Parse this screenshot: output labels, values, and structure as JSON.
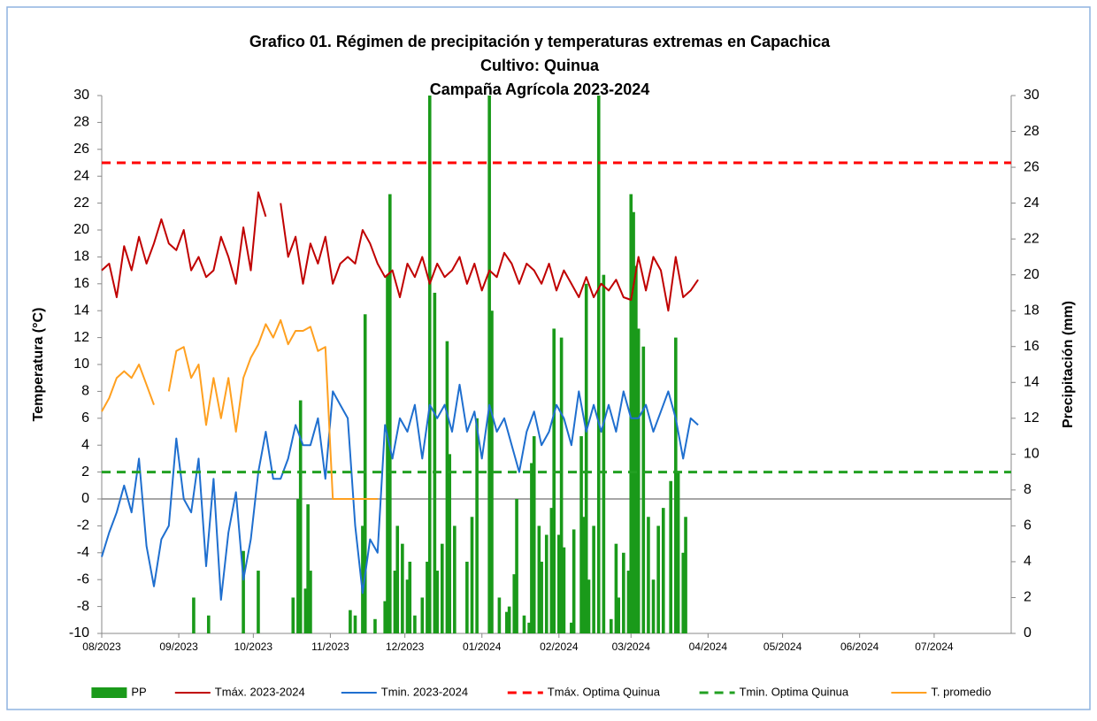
{
  "chart_data": {
    "type": "bar_line",
    "title": [
      "Grafico 01. Régimen de precipitación y temperaturas extremas en Capachica",
      "Cultivo: Quinua",
      "Campaña Agrícola 2023-2024"
    ],
    "ylabel": "Temperatura (°C)",
    "y2label": "Precipitación (mm)",
    "xlim": [
      0,
      366
    ],
    "xticks": [
      {
        "value": 0,
        "label": "08/2023"
      },
      {
        "value": 31,
        "label": "09/2023"
      },
      {
        "value": 61,
        "label": "10/2023"
      },
      {
        "value": 92,
        "label": "11/2023"
      },
      {
        "value": 122,
        "label": "12/2023"
      },
      {
        "value": 153,
        "label": "01/2024"
      },
      {
        "value": 184,
        "label": "02/2024"
      },
      {
        "value": 213,
        "label": "03/2024"
      },
      {
        "value": 244,
        "label": "04/2024"
      },
      {
        "value": 274,
        "label": "05/2024"
      },
      {
        "value": 305,
        "label": "06/2024"
      },
      {
        "value": 335,
        "label": "07/2024"
      }
    ],
    "ylim": [
      -10,
      30
    ],
    "yticks": [
      -10,
      -8,
      -6,
      -4,
      -2,
      0,
      2,
      4,
      6,
      8,
      10,
      12,
      14,
      16,
      18,
      20,
      22,
      24,
      26,
      28,
      30
    ],
    "y2lim": [
      0,
      30
    ],
    "y2ticks": [
      0,
      2,
      4,
      6,
      8,
      10,
      12,
      14,
      16,
      18,
      20,
      22,
      24,
      26,
      28,
      30
    ],
    "legend": "bottom",
    "series": [
      {
        "name": "PP",
        "type": "bar",
        "axis": "y2",
        "color": "#1a9a1a",
        "x": [
          37,
          43,
          57,
          63,
          77,
          79,
          80,
          82,
          83,
          84,
          100,
          102,
          105,
          106,
          110,
          114,
          115,
          116,
          118,
          119,
          121,
          123,
          124,
          126,
          129,
          131,
          132,
          134,
          135,
          137,
          139,
          140,
          142,
          147,
          149,
          151,
          156,
          157,
          160,
          163,
          164,
          166,
          167,
          170,
          172,
          173,
          174,
          176,
          177,
          179,
          181,
          182,
          184,
          185,
          186,
          189,
          190,
          193,
          194,
          195,
          196,
          198,
          200,
          202,
          205,
          207,
          208,
          210,
          212,
          213,
          214,
          215,
          216,
          218,
          220,
          222,
          224,
          226,
          229,
          231,
          232,
          234,
          235
        ],
        "values": [
          2,
          1,
          4.6,
          3.5,
          2,
          7.5,
          13,
          2.5,
          7.2,
          3.5,
          1.3,
          1,
          6,
          17.8,
          0.8,
          1.8,
          20,
          24.5,
          3.5,
          6,
          5,
          3,
          4,
          1,
          2,
          4,
          30,
          19,
          3.5,
          5,
          16.3,
          10,
          6,
          4,
          6.5,
          12,
          30,
          18,
          2,
          1.2,
          1.5,
          3.3,
          7.5,
          1,
          0.6,
          9.5,
          11,
          6,
          4,
          5.5,
          7,
          17,
          5.5,
          16.5,
          4.8,
          0.6,
          5.8,
          11,
          6.5,
          19.5,
          3,
          6,
          30,
          20,
          0.8,
          5,
          2,
          4.5,
          3.5,
          24.5,
          23.5,
          20.5,
          17,
          16,
          6.5,
          3,
          6,
          7,
          8.5,
          16.5,
          9,
          4.5,
          6.5
        ]
      },
      {
        "name": "Tmáx. 2023-2024",
        "type": "line",
        "color": "#c00000",
        "x": [
          0,
          3,
          6,
          9,
          12,
          15,
          18,
          21,
          24,
          27,
          30,
          33,
          36,
          39,
          42,
          45,
          48,
          51,
          54,
          57,
          60,
          63,
          66,
          69,
          72,
          75,
          78,
          81,
          84,
          87,
          90,
          93,
          96,
          99,
          102,
          105,
          108,
          111,
          114,
          117,
          120,
          123,
          126,
          129,
          132,
          135,
          138,
          141,
          144,
          147,
          150,
          153,
          156,
          159,
          162,
          165,
          168,
          171,
          174,
          177,
          180,
          183,
          186,
          189,
          192,
          195,
          198,
          201,
          204,
          207,
          210,
          213,
          216,
          219,
          222,
          225,
          228,
          231,
          234,
          237,
          240
        ],
        "values": [
          17,
          17.5,
          15,
          18.8,
          17,
          19.5,
          17.5,
          19,
          20.8,
          19,
          18.5,
          20,
          17,
          18,
          16.5,
          17,
          19.5,
          18,
          16,
          20.2,
          17,
          22.8,
          21,
          null,
          22,
          18,
          19.5,
          16,
          19,
          17.5,
          19.5,
          16,
          17.5,
          18,
          17.5,
          20,
          19,
          17.5,
          16.5,
          17,
          15,
          17.5,
          16.5,
          18,
          16,
          17.5,
          16.5,
          17,
          18,
          16,
          17.5,
          15.5,
          17,
          16.5,
          18.3,
          17.5,
          16,
          17.5,
          17,
          16,
          17.5,
          15.5,
          17,
          16,
          15,
          16.5,
          15,
          16,
          15.5,
          16.3,
          15,
          14.8,
          18,
          15.5,
          18,
          17,
          14,
          18,
          15,
          15.5,
          16.3
        ]
      },
      {
        "name": "Tmin. 2023-2024",
        "type": "line",
        "color": "#1f6fcf",
        "x": [
          0,
          3,
          6,
          9,
          12,
          15,
          18,
          21,
          24,
          27,
          30,
          33,
          36,
          39,
          42,
          45,
          48,
          51,
          54,
          57,
          60,
          63,
          66,
          69,
          72,
          75,
          78,
          81,
          84,
          87,
          90,
          93,
          96,
          99,
          102,
          105,
          108,
          111,
          114,
          117,
          120,
          123,
          126,
          129,
          132,
          135,
          138,
          141,
          144,
          147,
          150,
          153,
          156,
          159,
          162,
          165,
          168,
          171,
          174,
          177,
          180,
          183,
          186,
          189,
          192,
          195,
          198,
          201,
          204,
          207,
          210,
          213,
          216,
          219,
          222,
          225,
          228,
          231,
          234,
          237,
          240
        ],
        "values": [
          -4.3,
          -2.5,
          -1,
          1,
          -1,
          3,
          -3.5,
          -6.5,
          -3,
          -2,
          4.5,
          0,
          -1,
          3,
          -5,
          1.5,
          -7.5,
          -2.5,
          0.5,
          -6,
          -3,
          2,
          5,
          1.5,
          1.5,
          3,
          5.5,
          4,
          4,
          6,
          1.5,
          8,
          7,
          6,
          -2,
          -7,
          -3,
          -4,
          5.5,
          3,
          6,
          5,
          7,
          3,
          7,
          6,
          7,
          5,
          8.5,
          5,
          6.5,
          3,
          7,
          5,
          6,
          4,
          2,
          5,
          6.5,
          4,
          5,
          7,
          6,
          4,
          8,
          5,
          7,
          5,
          7,
          5,
          8,
          6,
          6,
          7,
          5,
          6.5,
          8,
          6,
          3,
          6,
          5.5
        ]
      },
      {
        "name": "Tmáx. Optima Quinua",
        "type": "hline",
        "color": "#ff0000",
        "value": 25
      },
      {
        "name": "Tmin. Optima Quinua",
        "type": "hline",
        "color": "#22a022",
        "value": 2
      },
      {
        "name": "T. promedio",
        "type": "line",
        "color": "#ffa020",
        "x": [
          0,
          3,
          6,
          9,
          12,
          15,
          18,
          21,
          24,
          27,
          30,
          33,
          36,
          39,
          42,
          45,
          48,
          51,
          54,
          57,
          60,
          63,
          66,
          69,
          72,
          75,
          78,
          81,
          84,
          87,
          90,
          93,
          96,
          99,
          102,
          105,
          108,
          111
        ],
        "values": [
          6.5,
          7.5,
          9,
          9.5,
          9,
          10,
          8.5,
          7,
          null,
          8,
          11,
          11.3,
          9,
          10,
          5.5,
          9,
          6,
          9,
          5,
          9,
          10.5,
          11.5,
          13,
          12,
          13.3,
          11.5,
          12.5,
          12.5,
          12.8,
          11,
          11.3,
          0,
          0,
          0,
          0,
          0,
          0,
          0
        ]
      }
    ]
  }
}
